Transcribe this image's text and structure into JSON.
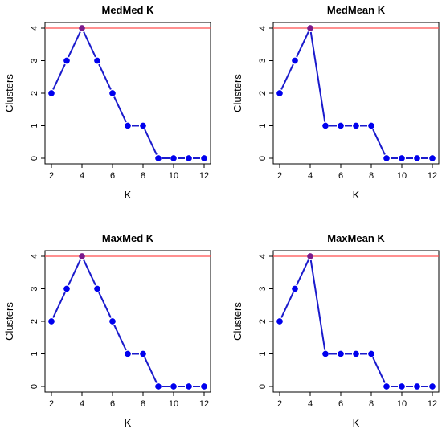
{
  "chart_data": [
    {
      "type": "line",
      "title": "MedMed K",
      "xlabel": "K",
      "ylabel": "Clusters",
      "xlim": [
        2,
        12
      ],
      "ylim": [
        0,
        4
      ],
      "xticks": [
        2,
        4,
        6,
        8,
        10,
        12
      ],
      "yticks": [
        0,
        1,
        2,
        3,
        4
      ],
      "series": [
        {
          "x": [
            2,
            3,
            4,
            5,
            6,
            7,
            8,
            9,
            10,
            11,
            12
          ],
          "values": [
            2,
            3,
            4,
            3,
            2,
            1,
            1,
            0,
            0,
            0,
            0
          ]
        }
      ],
      "reference_line": {
        "y": 4,
        "color": "#ff4d4d"
      },
      "highlight_point": {
        "x": 4,
        "y": 4
      }
    },
    {
      "type": "line",
      "title": "MedMean K",
      "xlabel": "K",
      "ylabel": "Clusters",
      "xlim": [
        2,
        12
      ],
      "ylim": [
        0,
        4
      ],
      "xticks": [
        2,
        4,
        6,
        8,
        10,
        12
      ],
      "yticks": [
        0,
        1,
        2,
        3,
        4
      ],
      "series": [
        {
          "x": [
            2,
            3,
            4,
            5,
            6,
            7,
            8,
            9,
            10,
            11,
            12
          ],
          "values": [
            2,
            3,
            4,
            1,
            1,
            1,
            1,
            0,
            0,
            0,
            0
          ]
        }
      ],
      "reference_line": {
        "y": 4,
        "color": "#ff4d4d"
      },
      "highlight_point": {
        "x": 4,
        "y": 4
      }
    },
    {
      "type": "line",
      "title": "MaxMed K",
      "xlabel": "K",
      "ylabel": "Clusters",
      "xlim": [
        2,
        12
      ],
      "ylim": [
        0,
        4
      ],
      "xticks": [
        2,
        4,
        6,
        8,
        10,
        12
      ],
      "yticks": [
        0,
        1,
        2,
        3,
        4
      ],
      "series": [
        {
          "x": [
            2,
            3,
            4,
            5,
            6,
            7,
            8,
            9,
            10,
            11,
            12
          ],
          "values": [
            2,
            3,
            4,
            3,
            2,
            1,
            1,
            0,
            0,
            0,
            0
          ]
        }
      ],
      "reference_line": {
        "y": 4,
        "color": "#ff4d4d"
      },
      "highlight_point": {
        "x": 4,
        "y": 4
      }
    },
    {
      "type": "line",
      "title": "MaxMean K",
      "xlabel": "K",
      "ylabel": "Clusters",
      "xlim": [
        2,
        12
      ],
      "ylim": [
        0,
        4
      ],
      "xticks": [
        2,
        4,
        6,
        8,
        10,
        12
      ],
      "yticks": [
        0,
        1,
        2,
        3,
        4
      ],
      "series": [
        {
          "x": [
            2,
            3,
            4,
            5,
            6,
            7,
            8,
            9,
            10,
            11,
            12
          ],
          "values": [
            2,
            3,
            4,
            1,
            1,
            1,
            1,
            0,
            0,
            0,
            0
          ]
        }
      ],
      "reference_line": {
        "y": 4,
        "color": "#ff4d4d"
      },
      "highlight_point": {
        "x": 4,
        "y": 4
      }
    }
  ],
  "colors": {
    "series_line": "#1a1acc",
    "series_point": "#0000ee",
    "highlight_point": "#7a1a8c",
    "axis": "#000000"
  }
}
